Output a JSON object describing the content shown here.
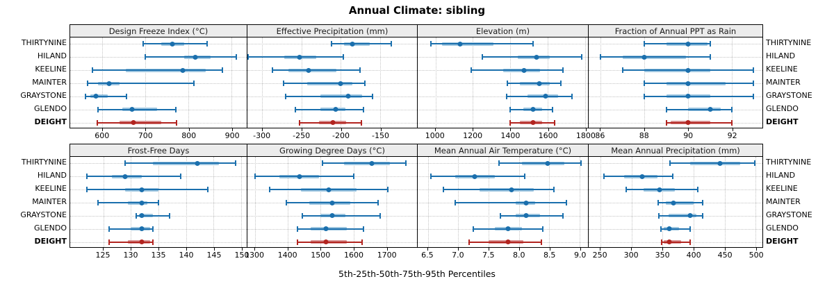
{
  "title": "Annual Climate: sibling",
  "caption": "5th-25th-50th-75th-95th Percentiles",
  "colors": {
    "series_main": "#1a6fad",
    "series_band": "#9ec6e0",
    "highlight_main": "#b2241f",
    "highlight_band": "#d89090",
    "strip_bg": "#ececec",
    "grid": "#c3c3c3",
    "border": "#000000"
  },
  "sites": [
    "THIRTYNINE",
    "HILAND",
    "KEELINE",
    "MAINTER",
    "GRAYSTONE",
    "GLENDO",
    "DEIGHT"
  ],
  "highlight_site": "DEIGHT",
  "chart_data": {
    "type": "scatter",
    "style": "dot-with-5-25-50-75-95-percentile-whiskers",
    "grid": "dotted",
    "categories": [
      "THIRTYNINE",
      "HILAND",
      "KEELINE",
      "MAINTER",
      "GRAYSTONE",
      "GLENDO",
      "DEIGHT"
    ],
    "highlight_category": "DEIGHT",
    "percentiles": [
      5,
      25,
      50,
      75,
      95
    ],
    "panels": [
      {
        "id": "design-freeze-index",
        "title": "Design Freeze Index (°C)",
        "grid_row": 0,
        "grid_col": 0,
        "axis_range": [
          525,
          935
        ],
        "ticks": [
          600,
          700,
          800,
          900
        ],
        "tick_labels": [
          "600",
          "700",
          "800",
          "900"
        ],
        "values": {
          "THIRTYNINE": [
            694,
            737,
            762,
            790,
            843
          ],
          "HILAND": [
            700,
            789,
            815,
            851,
            911
          ],
          "KEELINE": [
            577,
            654,
            787,
            840,
            878
          ],
          "MAINTER": [
            565,
            589,
            615,
            640,
            813
          ],
          "GRAYSTONE": [
            560,
            572,
            585,
            612,
            655
          ],
          "GLENDO": [
            590,
            646,
            668,
            727,
            771
          ],
          "DEIGHT": [
            588,
            640,
            672,
            737,
            772
          ]
        }
      },
      {
        "id": "effective-precipitation",
        "title": "Effective Precipitation (mm)",
        "grid_row": 0,
        "grid_col": 1,
        "axis_range": [
          -319,
          -103
        ],
        "ticks": [
          -300,
          -250,
          -200,
          -150
        ],
        "tick_labels": [
          "-300",
          "-250",
          "-200",
          "-150"
        ],
        "values": {
          "THIRTYNINE": [
            -212,
            -196,
            -185,
            -163,
            -136
          ],
          "HILAND": [
            -318,
            -272,
            -253,
            -231,
            -197
          ],
          "KEELINE": [
            -287,
            -267,
            -241,
            -206,
            -176
          ],
          "MAINTER": [
            -273,
            -243,
            -200,
            -185,
            -169
          ],
          "GRAYSTONE": [
            -270,
            -226,
            -191,
            -173,
            -160
          ],
          "GLENDO": [
            -258,
            -226,
            -207,
            -194,
            -171
          ],
          "DEIGHT": [
            -253,
            -228,
            -210,
            -193,
            -174
          ]
        }
      },
      {
        "id": "elevation",
        "title": "Elevation (m)",
        "grid_row": 0,
        "grid_col": 2,
        "axis_range": [
          905,
          1815
        ],
        "ticks": [
          1000,
          1200,
          1400,
          1600,
          1800
        ],
        "tick_labels": [
          "1000",
          "1200",
          "1400",
          "1600",
          "1800"
        ],
        "values": {
          "THIRTYNINE": [
            975,
            1035,
            1130,
            1310,
            1520
          ],
          "HILAND": [
            1250,
            1440,
            1540,
            1610,
            1780
          ],
          "KEELINE": [
            1190,
            1360,
            1475,
            1560,
            1680
          ],
          "MAINTER": [
            1385,
            1450,
            1555,
            1610,
            1670
          ],
          "GRAYSTONE": [
            1380,
            1490,
            1590,
            1655,
            1730
          ],
          "GLENDO": [
            1400,
            1470,
            1520,
            1570,
            1625
          ],
          "DEIGHT": [
            1400,
            1450,
            1520,
            1570,
            1635
          ]
        }
      },
      {
        "id": "fraction-ppt-as-rain",
        "title": "Fraction of Annual PPT as Rain",
        "grid_row": 0,
        "grid_col": 3,
        "axis_range": [
          85.45,
          93.4
        ],
        "ticks": [
          86,
          88,
          90,
          92
        ],
        "tick_labels": [
          "86",
          "88",
          "90",
          "92"
        ],
        "values": {
          "THIRTYNINE": [
            88,
            89,
            90,
            90.9,
            91
          ],
          "HILAND": [
            86,
            87,
            88,
            89.9,
            91
          ],
          "KEELINE": [
            87,
            88,
            90,
            91,
            93
          ],
          "MAINTER": [
            88,
            89,
            90,
            91.7,
            93
          ],
          "GRAYSTONE": [
            88,
            89,
            90,
            91,
            93
          ],
          "GLENDO": [
            89,
            90,
            91,
            91.5,
            92
          ],
          "DEIGHT": [
            89,
            89.2,
            90,
            91,
            92
          ]
        }
      },
      {
        "id": "frost-free-days",
        "title": "Frost-Free Days",
        "grid_row": 1,
        "grid_col": 0,
        "axis_range": [
          119,
          151
        ],
        "ticks": [
          125,
          130,
          135,
          140,
          145,
          150
        ],
        "tick_labels": [
          "125",
          "130",
          "135",
          "140",
          "145",
          "150"
        ],
        "values": {
          "THIRTYNINE": [
            129,
            134,
            142,
            146,
            149
          ],
          "HILAND": [
            122,
            126.5,
            129,
            132,
            139
          ],
          "KEELINE": [
            122,
            129,
            132,
            135,
            144
          ],
          "MAINTER": [
            124,
            129.5,
            132,
            133,
            135
          ],
          "GRAYSTONE": [
            131,
            131.5,
            132,
            134,
            137
          ],
          "GLENDO": [
            126,
            130,
            132,
            133.5,
            134
          ],
          "DEIGHT": [
            126,
            129.5,
            132,
            133.5,
            134
          ]
        }
      },
      {
        "id": "growing-degree-days",
        "title": "Growing Degree Days (°C)",
        "grid_row": 1,
        "grid_col": 1,
        "axis_range": [
          1277,
          1793
        ],
        "ticks": [
          1300,
          1400,
          1500,
          1600,
          1700
        ],
        "tick_labels": [
          "1300",
          "1400",
          "1500",
          "1600",
          "1700"
        ],
        "values": {
          "THIRTYNINE": [
            1505,
            1570,
            1655,
            1710,
            1760
          ],
          "HILAND": [
            1300,
            1375,
            1435,
            1495,
            1600
          ],
          "KEELINE": [
            1345,
            1440,
            1525,
            1610,
            1705
          ],
          "MAINTER": [
            1395,
            1465,
            1535,
            1590,
            1675
          ],
          "GRAYSTONE": [
            1445,
            1500,
            1535,
            1575,
            1680
          ],
          "GLENDO": [
            1430,
            1470,
            1515,
            1580,
            1630
          ],
          "DEIGHT": [
            1430,
            1470,
            1515,
            1580,
            1625
          ]
        }
      },
      {
        "id": "mean-annual-air-temperature",
        "title": "Mean Annual Air Temperature (°C)",
        "grid_row": 1,
        "grid_col": 2,
        "axis_range": [
          6.33,
          9.14
        ],
        "ticks": [
          6.5,
          7.0,
          7.5,
          8.0,
          8.5,
          9.0
        ],
        "tick_labels": [
          "6.5",
          "7.0",
          "7.5",
          "8.0",
          "8.5",
          "9.0"
        ],
        "values": {
          "THIRTYNINE": [
            7.67,
            8.05,
            8.47,
            8.75,
            9.02
          ],
          "HILAND": [
            6.55,
            6.95,
            7.27,
            7.6,
            8.1
          ],
          "KEELINE": [
            6.75,
            7.35,
            7.88,
            8.25,
            8.58
          ],
          "MAINTER": [
            6.95,
            7.95,
            8.12,
            8.27,
            8.78
          ],
          "GRAYSTONE": [
            7.7,
            7.95,
            8.12,
            8.35,
            8.73
          ],
          "GLENDO": [
            7.25,
            7.6,
            7.82,
            8.05,
            8.4
          ],
          "DEIGHT": [
            7.18,
            7.5,
            7.82,
            8.07,
            8.37
          ]
        }
      },
      {
        "id": "mean-annual-precipitation",
        "title": "Mean Annual Precipitation (mm)",
        "grid_row": 1,
        "grid_col": 3,
        "axis_range": [
          231,
          511
        ],
        "ticks": [
          250,
          300,
          350,
          400,
          450,
          500
        ],
        "tick_labels": [
          "250",
          "300",
          "350",
          "400",
          "450",
          "500"
        ],
        "values": {
          "THIRTYNINE": [
            362,
            395,
            443,
            475,
            499
          ],
          "HILAND": [
            256,
            288,
            317,
            342,
            366
          ],
          "KEELINE": [
            292,
            320,
            345,
            370,
            407
          ],
          "MAINTER": [
            343,
            355,
            368,
            400,
            415
          ],
          "GRAYSTONE": [
            344,
            360,
            395,
            405,
            415
          ],
          "GLENDO": [
            347,
            352,
            361,
            377,
            394
          ],
          "DEIGHT": [
            349,
            352,
            361,
            380,
            394
          ]
        }
      }
    ]
  }
}
